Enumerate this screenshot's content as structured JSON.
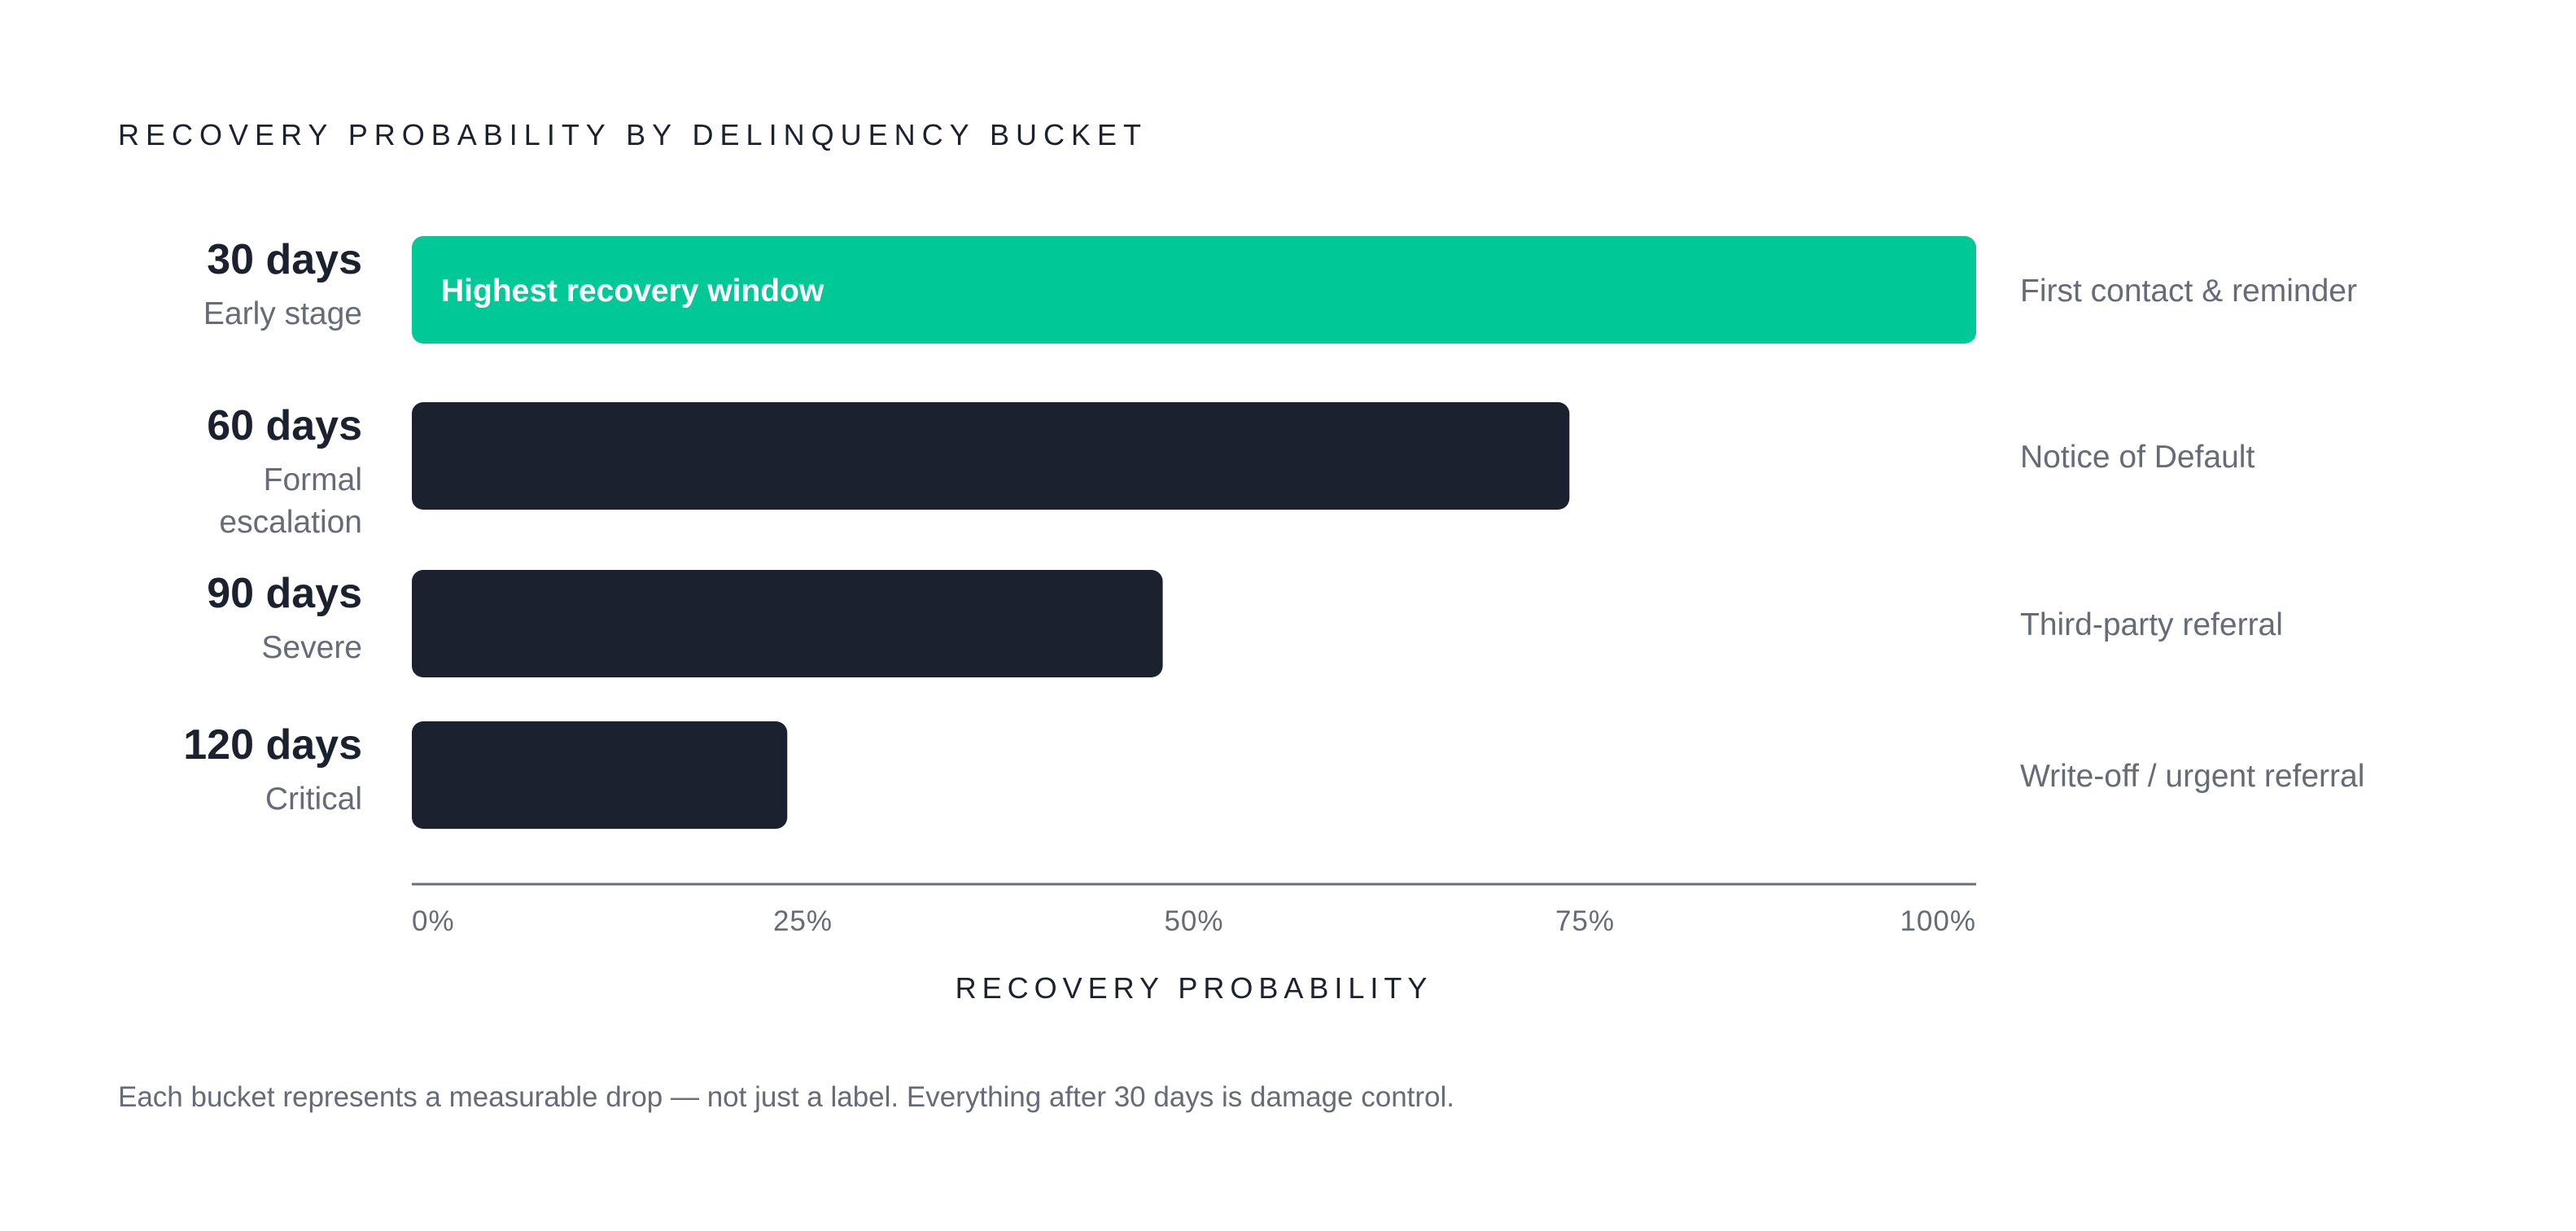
{
  "chart_data": {
    "type": "bar",
    "orientation": "horizontal",
    "title": "RECOVERY PROBABILITY BY DELINQUENCY BUCKET",
    "xlabel": "RECOVERY PROBABILITY",
    "ylabel": "",
    "xlim": [
      0,
      100
    ],
    "ticks": [
      "0%",
      "25%",
      "50%",
      "75%",
      "100%"
    ],
    "grid": false,
    "categories": [
      {
        "label": "30 days",
        "sublabel": [
          "Early stage"
        ],
        "value": 100,
        "highlight": true,
        "bar_label": "Highest recovery window",
        "action": "First contact & reminder"
      },
      {
        "label": "60 days",
        "sublabel": [
          "Formal",
          "escalation"
        ],
        "value": 74,
        "highlight": false,
        "bar_label": "",
        "action": "Notice of Default"
      },
      {
        "label": "90 days",
        "sublabel": [
          "Severe"
        ],
        "value": 48,
        "highlight": false,
        "bar_label": "",
        "action": "Third-party referral"
      },
      {
        "label": "120 days",
        "sublabel": [
          "Critical"
        ],
        "value": 24,
        "highlight": false,
        "bar_label": "",
        "action": "Write-off / urgent referral"
      }
    ],
    "colors": {
      "highlight": "#00c896",
      "bar": "#1c2130",
      "axis": "#6b6f78",
      "muted": "#666b78",
      "label": "#1c2130"
    }
  },
  "footnote": "Each bucket represents a measurable drop — not just a label. Everything after 30 days is damage control."
}
